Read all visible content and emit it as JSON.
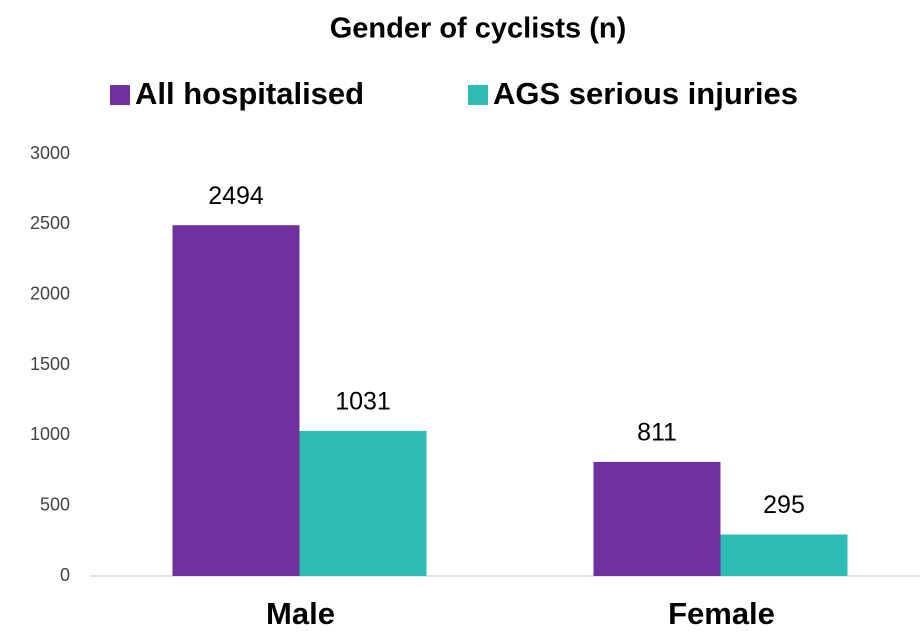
{
  "chart_data": {
    "type": "bar",
    "title": "Gender of cyclists (n)",
    "categories": [
      "Male",
      "Female"
    ],
    "series": [
      {
        "name": "All hospitalised",
        "color": "#7030a0",
        "values": [
          2494,
          811
        ]
      },
      {
        "name": "AGS serious injuries",
        "color": "#2ebdb5",
        "values": [
          1031,
          295
        ]
      }
    ],
    "ylim": [
      0,
      3000
    ],
    "yticks": [
      0,
      500,
      1000,
      1500,
      2000,
      2500,
      3000
    ],
    "legend": "top",
    "grid": false
  }
}
